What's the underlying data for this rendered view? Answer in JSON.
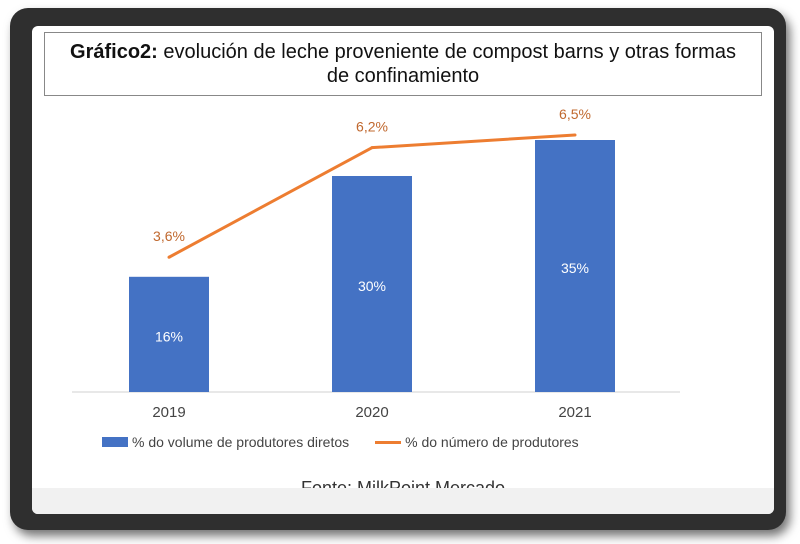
{
  "title_prefix": "Gráfico2:",
  "title_text": " evolución de leche proveniente de compost barns y otras formas de confinamiento",
  "source": "Fonte: MilkPoint Mercado",
  "colors": {
    "bar": "#4472c4",
    "line": "#ed7d31",
    "line_label": "#c0682e"
  },
  "chart_data": {
    "type": "bar",
    "categories": [
      "2019",
      "2020",
      "2021"
    ],
    "series": [
      {
        "name": "% do volume de produtores diretos",
        "type": "bar",
        "values": [
          16,
          30,
          35
        ],
        "labels": [
          "16%",
          "30%",
          "35%"
        ]
      },
      {
        "name": "% do número de produtores",
        "type": "line",
        "values": [
          3.6,
          6.2,
          6.5
        ],
        "labels": [
          "3,6%",
          "6,2%",
          "6,5%"
        ]
      }
    ],
    "legend": "bottom",
    "grid": false
  }
}
